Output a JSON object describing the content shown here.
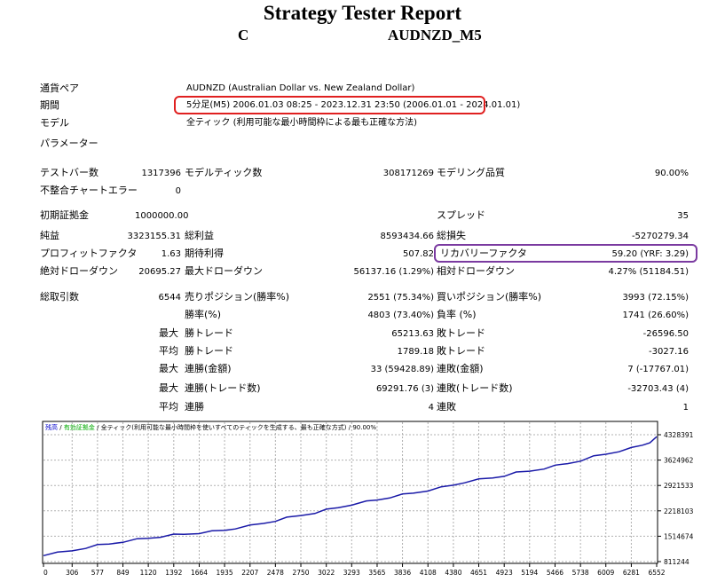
{
  "report": {
    "title": "Strategy Tester Report",
    "subtitle_left": "C",
    "subtitle_right": "AUDNZD_M5"
  },
  "info": [
    {
      "label": "通貨ペア",
      "value": "AUDNZD (Australian Dollar vs. New Zealand Dollar)"
    },
    {
      "label": "期間",
      "value": "5分足(M5) 2006.01.03 08:25 - 2023.12.31 23:50 (2006.01.01 - 2024.01.01)"
    },
    {
      "label": "モデル",
      "value": "全ティック (利用可能な最小時間枠による最も正確な方法)"
    },
    {
      "label": "パラメーター",
      "value": ""
    }
  ],
  "stats": {
    "bars_label": "テストバー数",
    "bars_value": "1317396",
    "ticks_label": "モデルティック数",
    "ticks_value": "308171269",
    "quality_label": "モデリング品質",
    "quality_value": "90.00%",
    "mismatch_label": "不整合チャートエラー",
    "mismatch_value": "0",
    "deposit_label": "初期証拠金",
    "deposit_value": "1000000.00",
    "spread_label": "スプレッド",
    "spread_value": "35",
    "net_label": "純益",
    "net_value": "3323155.31",
    "gross_profit_label": "総利益",
    "gross_profit_value": "8593434.66",
    "gross_loss_label": "総損失",
    "gross_loss_value": "-5270279.34",
    "pf_label": "プロフィットファクタ",
    "pf_value": "1.63",
    "payoff_label": "期待利得",
    "payoff_value": "507.82",
    "rf_label": "リカバリーファクタ",
    "rf_value": "59.20 (YRF: 3.29)",
    "abs_dd_label": "絶対ドローダウン",
    "abs_dd_value": "20695.27",
    "max_dd_label": "最大ドローダウン",
    "max_dd_value": "56137.16 (1.29%)",
    "rel_dd_label": "相対ドローダウン",
    "rel_dd_value": "4.27% (51184.51)",
    "trades_label": "総取引数",
    "trades_value": "6544",
    "short_label": "売りポジション(勝率%)",
    "short_value": "2551 (75.34%)",
    "long_label": "買いポジション(勝率%)",
    "long_value": "3993 (72.15%)",
    "win_rate_label": "勝率(%)",
    "win_rate_value": "4803 (73.40%)",
    "loss_rate_label": "負率 (%)",
    "loss_rate_value": "1741 (26.60%)",
    "max_label": "最大",
    "avg_label": "平均",
    "win_trade_label": "勝トレード",
    "loss_trade_label": "敗トレード",
    "max_win_value": "65213.63",
    "max_loss_value": "-26596.50",
    "avg_win_value": "1789.18",
    "avg_loss_value": "-3027.16",
    "cons_win_amt_label": "連勝(金額)",
    "cons_win_amt_value": "33 (59428.89)",
    "cons_loss_amt_label": "連敗(金額)",
    "cons_loss_amt_value": "7 (-17767.01)",
    "cons_win_trades_label": "連勝(トレード数)",
    "cons_win_trades_value": "69291.76 (3)",
    "cons_loss_trades_label": "連敗(トレード数)",
    "cons_loss_trades_value": "-32703.43 (4)",
    "avg_cons_win_label": "連勝",
    "avg_cons_win_value": "4",
    "avg_cons_loss_label": "連敗",
    "avg_cons_loss_value": "1"
  },
  "chart_data": {
    "type": "line",
    "legend": {
      "balance": "残高",
      "sep1": " / ",
      "equity": "有効証拠金",
      "sep2": " / ",
      "model": "全ティック(利用可能な最小時間枠を使いすべてのティックを生成する、最も正確な方式)",
      "sep3": " / ",
      "quality": "90.00%"
    },
    "colors": {
      "balance": "#0000cc",
      "equity": "#00aa00",
      "line": "#1a1aa8"
    },
    "x_ticks": [
      0,
      306,
      577,
      849,
      1120,
      1392,
      1664,
      1935,
      2207,
      2478,
      2750,
      3022,
      3293,
      3565,
      3836,
      4108,
      4380,
      4651,
      4923,
      5194,
      5466,
      5738,
      6009,
      6281,
      6552
    ],
    "y_ticks": [
      811244,
      1514674,
      2218103,
      2921533,
      3624962,
      4328391
    ],
    "xlim": [
      0,
      6552
    ],
    "ylim": [
      811244,
      4328391
    ],
    "series": [
      {
        "x": [
          0,
          150,
          306,
          450,
          577,
          700,
          849,
          1000,
          1120,
          1250,
          1392,
          1500,
          1664,
          1800,
          1935,
          2050,
          2207,
          2350,
          2478,
          2600,
          2750,
          2900,
          3022,
          3150,
          3293,
          3450,
          3565,
          3700,
          3836,
          3950,
          4108,
          4250,
          4380,
          4500,
          4651,
          4800,
          4923,
          5050,
          5194,
          5350,
          5466,
          5600,
          5738,
          5880,
          6009,
          6150,
          6281,
          6400,
          6480,
          6552
        ],
        "values": [
          1000000,
          1050000,
          1120000,
          1200000,
          1260000,
          1310000,
          1370000,
          1420000,
          1470000,
          1510000,
          1550000,
          1580000,
          1610000,
          1640000,
          1690000,
          1740000,
          1800000,
          1880000,
          1950000,
          2020000,
          2100000,
          2170000,
          2240000,
          2320000,
          2400000,
          2470000,
          2530000,
          2600000,
          2660000,
          2720000,
          2790000,
          2860000,
          2940000,
          3020000,
          3080000,
          3140000,
          3200000,
          3270000,
          3330000,
          3400000,
          3460000,
          3540000,
          3620000,
          3720000,
          3800000,
          3880000,
          3950000,
          4050000,
          4130000,
          4250000
        ]
      }
    ]
  }
}
